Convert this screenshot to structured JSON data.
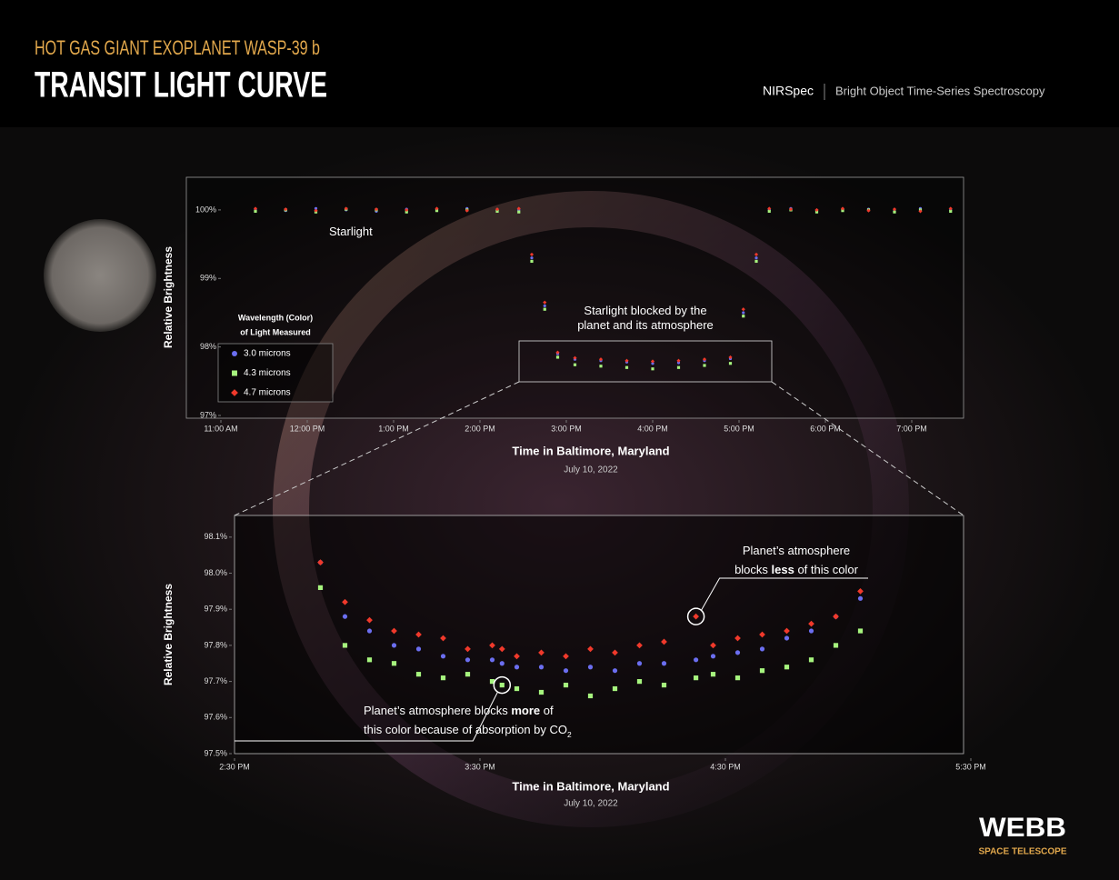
{
  "header": {
    "subtitle": "HOT GAS GIANT EXOPLANET WASP-39 b",
    "title": "TRANSIT LIGHT CURVE",
    "instrument": "NIRSpec",
    "mode": "Bright Object Time-Series Spectroscopy"
  },
  "logo": {
    "name": "WEBB",
    "tagline": "SPACE TELESCOPE"
  },
  "chart_data": [
    {
      "type": "scatter",
      "y_label": "Relative Brightness",
      "x_label": "Time in Baltimore, Maryland",
      "x_sublabel": "July 10, 2022",
      "xlim": [
        11,
        19.6
      ],
      "ylim": [
        97,
        100.45
      ],
      "xticks": [
        {
          "value": 11,
          "label": "11:00 AM"
        },
        {
          "value": 12,
          "label": "12:00 PM"
        },
        {
          "value": 13,
          "label": "1:00 PM"
        },
        {
          "value": 14,
          "label": "2:00 PM"
        },
        {
          "value": 15,
          "label": "3:00 PM"
        },
        {
          "value": 16,
          "label": "4:00 PM"
        },
        {
          "value": 17,
          "label": "5:00 PM"
        },
        {
          "value": 18,
          "label": "6:00 PM"
        },
        {
          "value": 19,
          "label": "7:00 PM"
        }
      ],
      "yticks": [
        {
          "value": 97,
          "label": "97%"
        },
        {
          "value": 98,
          "label": "98%"
        },
        {
          "value": 99,
          "label": "99%"
        },
        {
          "value": 100,
          "label": "100%"
        }
      ],
      "legend_title": [
        "Wavelength (Color)",
        "of Light Measured"
      ],
      "annotations": [
        {
          "lines": [
            [
              {
                "text": "Starlight"
              }
            ]
          ]
        },
        {
          "lines": [
            [
              {
                "text": "Starlight blocked by the"
              }
            ],
            [
              {
                "text": "planet and its atmosphere"
              }
            ]
          ]
        }
      ],
      "x": [
        11.4,
        11.75,
        12.1,
        12.45,
        12.8,
        13.15,
        13.5,
        13.85,
        14.2,
        14.45,
        14.6,
        14.75,
        14.9,
        15.1,
        15.4,
        15.7,
        16.0,
        16.3,
        16.6,
        16.9,
        17.05,
        17.2,
        17.35,
        17.6,
        17.9,
        18.2,
        18.5,
        18.8,
        19.1,
        19.45
      ],
      "series": [
        {
          "name": "3.0 microns",
          "color": "#6b6ef0",
          "marker": "circle",
          "values": [
            100.0,
            99.99,
            100.02,
            100.0,
            99.98,
            100.01,
            100.0,
            100.02,
            99.99,
            100.0,
            99.3,
            98.6,
            97.9,
            97.82,
            97.8,
            97.78,
            97.76,
            97.77,
            97.8,
            97.83,
            98.5,
            99.3,
            100.0,
            100.02,
            99.99,
            100.0,
            100.01,
            99.98,
            100.02,
            100.0
          ]
        },
        {
          "name": "4.3 microns",
          "color": "#a6f47e",
          "marker": "square",
          "values": [
            99.98,
            100.0,
            99.97,
            100.01,
            100.0,
            99.97,
            99.99,
            100.0,
            99.98,
            99.97,
            99.25,
            98.55,
            97.85,
            97.74,
            97.72,
            97.7,
            97.68,
            97.7,
            97.73,
            97.76,
            98.45,
            99.25,
            99.98,
            100.0,
            99.97,
            99.99,
            100.0,
            99.97,
            100.0,
            99.98
          ]
        },
        {
          "name": "4.7 microns",
          "color": "#f0392b",
          "marker": "diamond",
          "values": [
            100.02,
            100.01,
            99.99,
            100.02,
            100.01,
            100.0,
            100.02,
            99.99,
            100.01,
            100.02,
            99.35,
            98.65,
            97.92,
            97.84,
            97.82,
            97.8,
            97.79,
            97.8,
            97.82,
            97.85,
            98.55,
            99.35,
            100.02,
            100.01,
            100.0,
            100.02,
            99.99,
            100.01,
            99.98,
            100.02
          ]
        }
      ]
    },
    {
      "type": "scatter",
      "y_label": "Relative Brightness",
      "x_label": "Time in Baltimore, Maryland",
      "x_sublabel": "July 10, 2022",
      "xlim": [
        14.5,
        17.5
      ],
      "ylim": [
        97.5,
        98.16
      ],
      "xticks": [
        {
          "value": 14.5,
          "label": "2:30 PM"
        },
        {
          "value": 15.5,
          "label": "3:30 PM"
        },
        {
          "value": 16.5,
          "label": "4:30 PM"
        },
        {
          "value": 17.5,
          "label": "5:30 PM"
        }
      ],
      "yticks": [
        {
          "value": 97.5,
          "label": "97.5%"
        },
        {
          "value": 97.6,
          "label": "97.6%"
        },
        {
          "value": 97.7,
          "label": "97.7%"
        },
        {
          "value": 97.8,
          "label": "97.8%"
        },
        {
          "value": 97.9,
          "label": "97.9%"
        },
        {
          "value": 98.0,
          "label": "98.0%"
        },
        {
          "value": 98.1,
          "label": "98.1%"
        }
      ],
      "annotations": [
        {
          "lines": [
            [
              {
                "text": "Planet’s atmosphere"
              }
            ],
            [
              {
                "text": "blocks "
              },
              {
                "text": "less",
                "bold": true
              },
              {
                "text": " of this color"
              }
            ]
          ]
        },
        {
          "lines": [
            [
              {
                "text": "Planet’s atmosphere blocks "
              },
              {
                "text": "more",
                "bold": true
              },
              {
                "text": " of"
              }
            ],
            [
              {
                "text": "this color because of absorption by CO"
              },
              {
                "text": "2",
                "subscript": true
              }
            ]
          ]
        }
      ],
      "x": [
        14.85,
        14.95,
        15.05,
        15.15,
        15.25,
        15.35,
        15.45,
        15.55,
        15.59,
        15.65,
        15.75,
        15.85,
        15.95,
        16.05,
        16.15,
        16.25,
        16.38,
        16.45,
        16.55,
        16.65,
        16.75,
        16.85,
        16.95,
        17.05
      ],
      "series": [
        {
          "name": "3.0 microns",
          "color": "#6b6ef0",
          "marker": "circle",
          "values": [
            98.03,
            97.88,
            97.84,
            97.8,
            97.79,
            97.77,
            97.76,
            97.76,
            97.75,
            97.74,
            97.74,
            97.73,
            97.74,
            97.73,
            97.75,
            97.75,
            97.76,
            97.77,
            97.78,
            97.79,
            97.82,
            97.84,
            97.88,
            97.93
          ]
        },
        {
          "name": "4.3 microns",
          "color": "#a6f47e",
          "marker": "square",
          "values": [
            97.96,
            97.8,
            97.76,
            97.75,
            97.72,
            97.71,
            97.72,
            97.7,
            97.69,
            97.68,
            97.67,
            97.69,
            97.66,
            97.68,
            97.7,
            97.69,
            97.71,
            97.72,
            97.71,
            97.73,
            97.74,
            97.76,
            97.8,
            97.84
          ]
        },
        {
          "name": "4.7 microns",
          "color": "#f0392b",
          "marker": "diamond",
          "values": [
            98.03,
            97.92,
            97.87,
            97.84,
            97.83,
            97.82,
            97.79,
            97.8,
            97.79,
            97.77,
            97.78,
            97.77,
            97.79,
            97.78,
            97.8,
            97.81,
            97.88,
            97.8,
            97.82,
            97.83,
            97.84,
            97.86,
            97.88,
            97.95
          ]
        }
      ]
    }
  ]
}
